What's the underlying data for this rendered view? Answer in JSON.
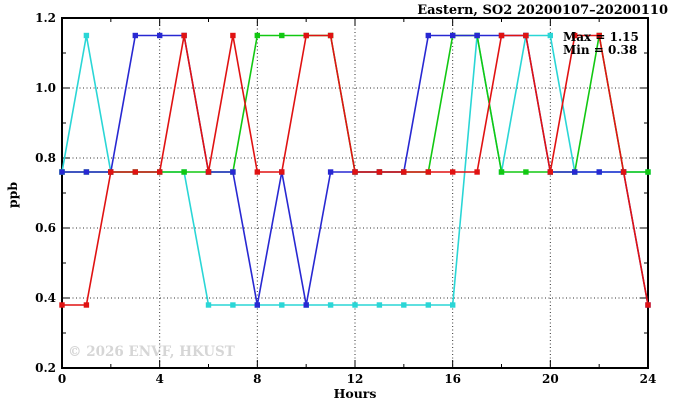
{
  "title": "Eastern, SO2 20200107–20200110",
  "annotations": {
    "max": "Max = 1.15",
    "min": "Min = 0.38"
  },
  "watermark": "© 2026 ENVF, HKUST",
  "chart_data": {
    "type": "line",
    "title": "Eastern, SO2 20200107–20200110",
    "xlabel": "Hours",
    "ylabel": "ppb",
    "xlim": [
      0,
      24
    ],
    "ylim": [
      0.2,
      1.2
    ],
    "grid": "dotted-at-major-ticks",
    "legend": "none",
    "max": 1.15,
    "min": 0.38,
    "x_ticks": {
      "values": [
        0,
        4,
        8,
        12,
        16,
        20,
        24
      ],
      "labels": [
        "0",
        "4",
        "8",
        "12",
        "16",
        "20",
        "24"
      ]
    },
    "x_minor_ticks": [
      2,
      6,
      10,
      14,
      18,
      22
    ],
    "y_ticks": {
      "values": [
        0.2,
        0.4,
        0.6,
        0.8,
        1.0,
        1.2
      ],
      "labels": [
        "0.2",
        "0.4",
        "0.6",
        "0.8",
        "1.0",
        "1.2"
      ]
    },
    "y_minor_ticks": [
      0.3,
      0.5,
      0.7,
      0.9,
      1.1
    ],
    "x_grid": [
      4,
      8,
      12,
      16,
      20
    ],
    "y_grid": [
      0.4,
      0.6,
      0.8,
      1.0
    ],
    "x": [
      0,
      1,
      2,
      3,
      4,
      5,
      6,
      7,
      8,
      9,
      10,
      11,
      12,
      13,
      14,
      15,
      16,
      17,
      18,
      19,
      20,
      21,
      22,
      23,
      24
    ],
    "series": [
      {
        "name": "series-cyan",
        "color": "#2ad6d6",
        "values": [
          0.76,
          1.15,
          0.76,
          0.76,
          0.76,
          0.76,
          0.38,
          0.38,
          0.38,
          0.38,
          0.38,
          0.38,
          0.38,
          0.38,
          0.38,
          0.38,
          0.38,
          1.15,
          0.76,
          1.15,
          1.15,
          0.76,
          0.76,
          0.76,
          0.76
        ]
      },
      {
        "name": "series-green",
        "color": "#12c812",
        "values": [
          0.76,
          0.76,
          0.76,
          0.76,
          0.76,
          0.76,
          0.76,
          0.76,
          1.15,
          1.15,
          1.15,
          1.15,
          0.76,
          0.76,
          0.76,
          0.76,
          1.15,
          1.15,
          0.76,
          0.76,
          0.76,
          0.76,
          1.15,
          0.76,
          0.76
        ]
      },
      {
        "name": "series-blue",
        "color": "#2828d2",
        "values": [
          0.76,
          0.76,
          0.76,
          1.15,
          1.15,
          1.15,
          0.76,
          0.76,
          0.38,
          0.76,
          0.38,
          0.76,
          0.76,
          0.76,
          0.76,
          1.15,
          1.15,
          1.15,
          1.15,
          1.15,
          0.76,
          0.76,
          0.76,
          0.76,
          0.38
        ]
      },
      {
        "name": "series-red",
        "color": "#e01212",
        "values": [
          0.38,
          0.38,
          0.76,
          0.76,
          0.76,
          1.15,
          0.76,
          1.15,
          0.76,
          0.76,
          1.15,
          1.15,
          0.76,
          0.76,
          0.76,
          0.76,
          0.76,
          0.76,
          1.15,
          1.15,
          0.76,
          1.15,
          1.15,
          0.76,
          0.38
        ]
      }
    ]
  }
}
